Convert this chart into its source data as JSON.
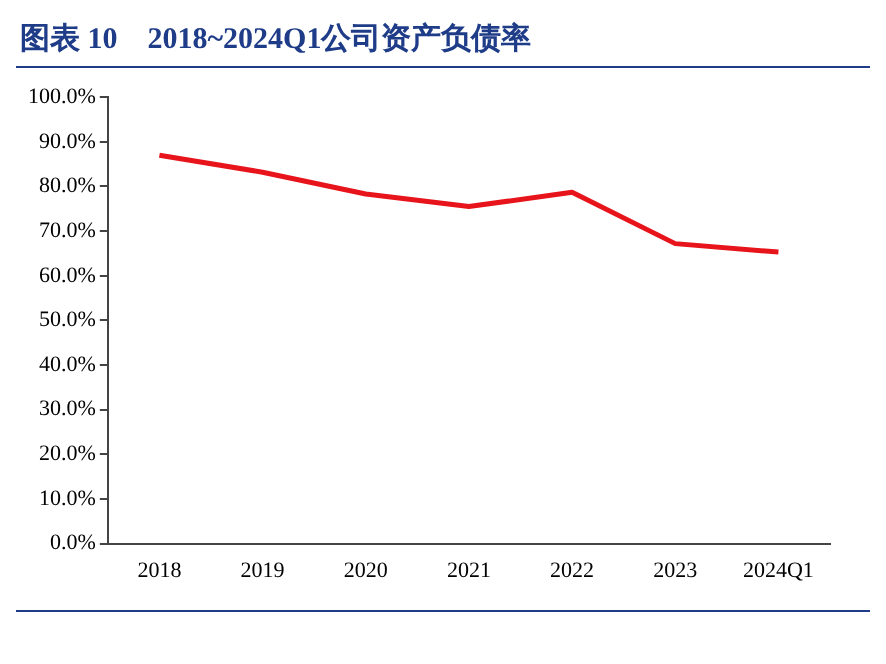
{
  "chart_data": {
    "type": "line",
    "title": "图表 10　2018~2024Q1公司资产负债率",
    "categories": [
      "2018",
      "2019",
      "2020",
      "2021",
      "2022",
      "2023",
      "2024Q1"
    ],
    "series": [
      {
        "color": "#e8141c",
        "values": [
          87.0,
          83.2,
          78.3,
          75.5,
          78.7,
          67.2,
          65.3
        ]
      }
    ],
    "ylim": [
      0,
      100
    ],
    "yticks": [
      {
        "value": 0,
        "label": "0.0%"
      },
      {
        "value": 10,
        "label": "10.0%"
      },
      {
        "value": 20,
        "label": "20.0%"
      },
      {
        "value": 30,
        "label": "30.0%"
      },
      {
        "value": 40,
        "label": "40.0%"
      },
      {
        "value": 50,
        "label": "50.0%"
      },
      {
        "value": 60,
        "label": "60.0%"
      },
      {
        "value": 70,
        "label": "70.0%"
      },
      {
        "value": 80,
        "label": "80.0%"
      },
      {
        "value": 90,
        "label": "90.0%"
      },
      {
        "value": 100,
        "label": "100.0%"
      }
    ],
    "grid": false,
    "legend": false,
    "marker": "none",
    "line_style": "solid"
  }
}
